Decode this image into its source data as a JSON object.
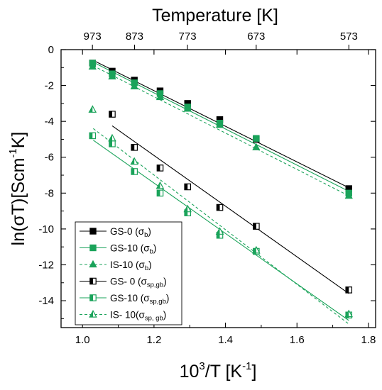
{
  "chart_data": {
    "type": "scatter",
    "top_axis_title": "Temperature [K]",
    "top_ticks": [
      "973",
      "873",
      "773",
      "673",
      "573"
    ],
    "xlabel_base": "10",
    "xlabel_sup": "3",
    "xlabel_mid": "/T [K",
    "xlabel_sup2": "-1",
    "xlabel_end": "]",
    "ylabel_main": "ln(σT)[Scm",
    "ylabel_sup": "-1",
    "ylabel_end": "K]",
    "xlim": [
      0.94,
      1.82
    ],
    "ylim": [
      -15.5,
      0
    ],
    "xticks": [
      "1.0",
      "1.2",
      "1.4",
      "1.6",
      "1.8"
    ],
    "yticks": [
      "0",
      "-2",
      "-4",
      "-6",
      "-8",
      "-10",
      "-12",
      "-14"
    ],
    "x": [
      1.028,
      1.083,
      1.145,
      1.217,
      1.294,
      1.384,
      1.486,
      1.745
    ],
    "series": [
      {
        "name": "GS-0 (σ",
        "sub": "b",
        "color": "#000000",
        "marker": "square-filled",
        "line": "solid",
        "values": [
          -0.75,
          -1.2,
          -1.7,
          -2.3,
          -3.0,
          -3.9,
          -5.0,
          -7.75
        ],
        "fit": [
          [
            1.03,
            -0.6
          ],
          [
            1.745,
            -7.7
          ]
        ]
      },
      {
        "name": "GS-10 (σ",
        "sub": "b",
        "color": "#1aa35a",
        "marker": "square-filled",
        "line": "solid",
        "values": [
          -0.75,
          -1.35,
          -1.85,
          -2.45,
          -3.2,
          -4.1,
          -4.95,
          -8.0
        ],
        "fit": [
          [
            1.03,
            -0.7
          ],
          [
            1.745,
            -7.9
          ]
        ]
      },
      {
        "name": "IS-10 (σ",
        "sub": "b",
        "color": "#1aa35a",
        "marker": "triangle-filled",
        "line": "dashed",
        "values": [
          -0.95,
          -1.5,
          -2.05,
          -2.65,
          -3.3,
          -4.2,
          -5.45,
          -8.15
        ],
        "fit": [
          [
            1.03,
            -0.9
          ],
          [
            1.745,
            -8.15
          ]
        ]
      },
      {
        "name": "GS- 0 (σ",
        "sub": "sp,gb",
        "color": "#000000",
        "marker": "square-half",
        "line": "solid",
        "values": [
          null,
          -3.6,
          -5.45,
          -6.6,
          -7.65,
          -8.8,
          -9.85,
          -13.4
        ],
        "fit": [
          [
            1.083,
            -4.25
          ],
          [
            1.745,
            -13.6
          ]
        ]
      },
      {
        "name": "GS-10 (σ",
        "sub": "sp,gb",
        "color": "#1aa35a",
        "marker": "square-half",
        "line": "solid",
        "values": [
          -4.8,
          -5.25,
          -6.8,
          -8.0,
          -9.1,
          -10.35,
          -11.25,
          -14.8
        ],
        "fit": [
          [
            1.03,
            -5.05
          ],
          [
            1.745,
            -15.1
          ]
        ]
      },
      {
        "name": "IS- 10(σ",
        "sub": "sp, gb",
        "color": "#1aa35a",
        "marker": "triangle-half",
        "line": "dashed",
        "values": [
          -3.35,
          -4.95,
          -6.25,
          -7.6,
          -8.9,
          -10.15,
          -11.2,
          -14.75
        ],
        "fit": [
          [
            1.03,
            -4.4
          ],
          [
            1.745,
            -15.3
          ]
        ]
      }
    ],
    "legend_position": "bottom-left",
    "grid": false
  }
}
